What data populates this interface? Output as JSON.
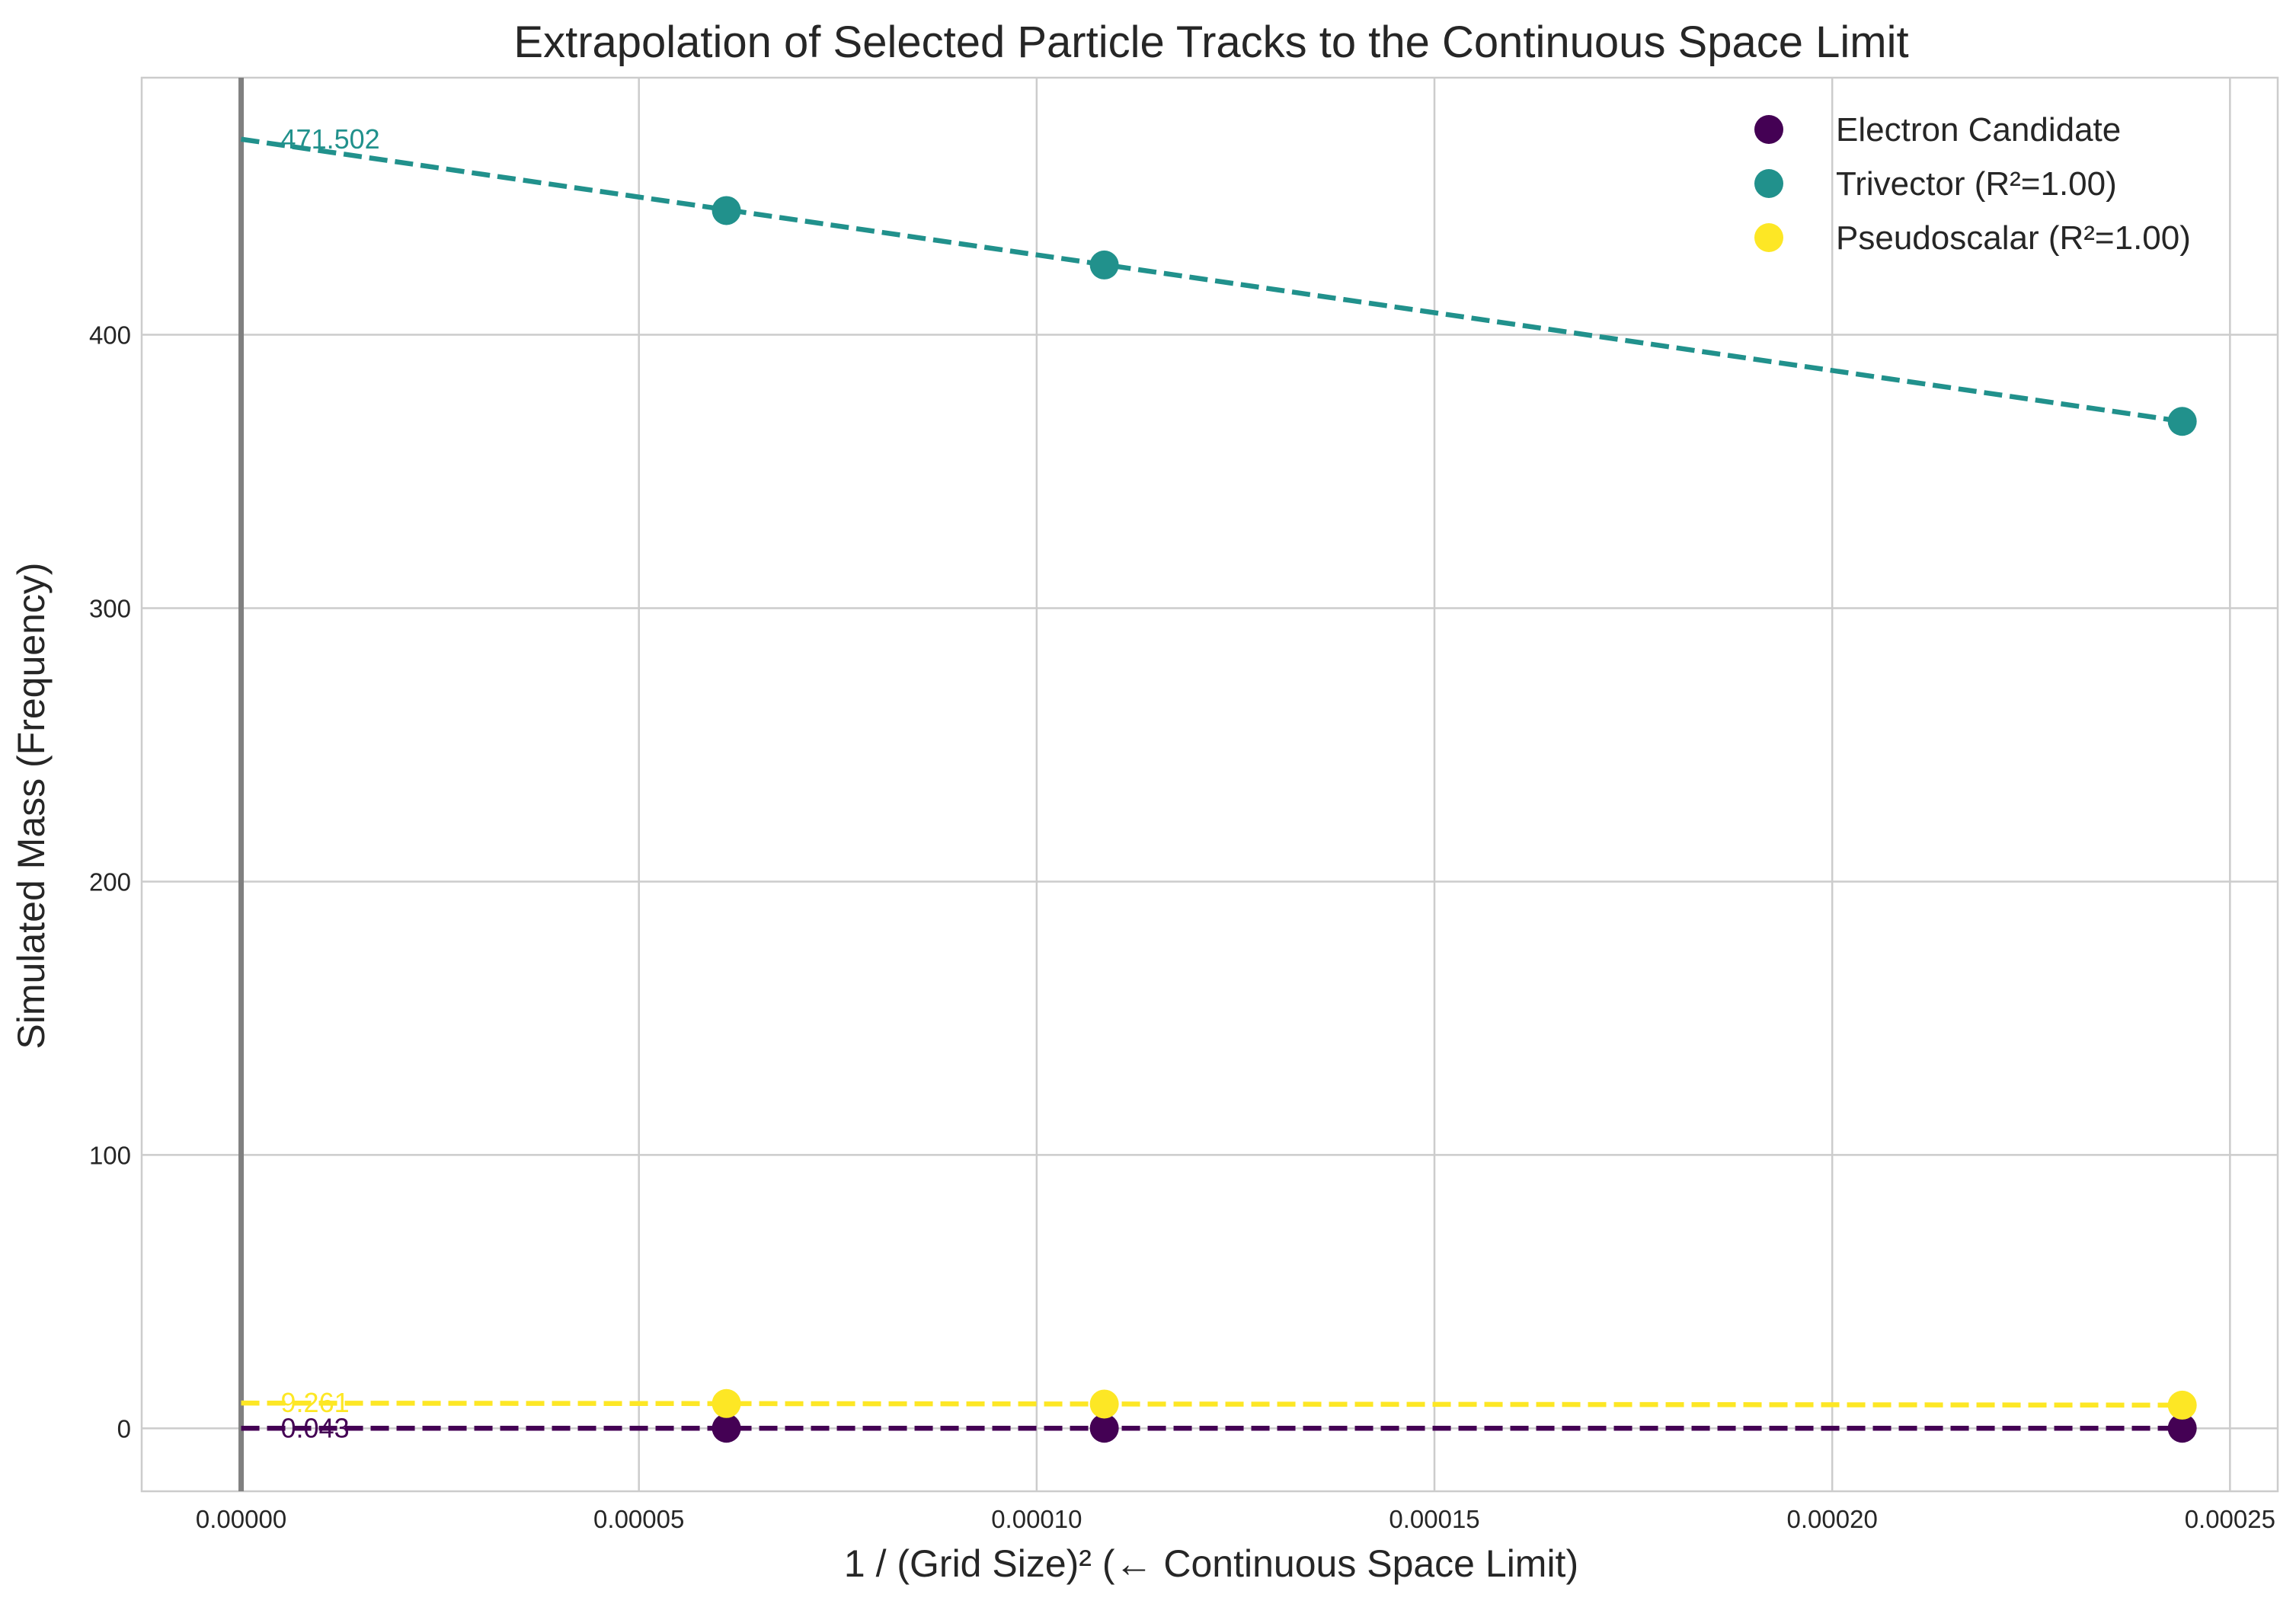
{
  "chart_data": {
    "type": "scatter",
    "title": "Extrapolation of Selected Particle Tracks to the Continuous Space Limit",
    "xlabel": "1 / (Grid Size)² (← Continuous Space Limit)",
    "ylabel": "Simulated Mass (Frequency)",
    "xlim": [
      -1.25e-05,
      0.000256
    ],
    "ylim": [
      -23,
      494
    ],
    "xticks": [
      0,
      5e-05,
      0.0001,
      0.00015,
      0.0002,
      0.00025
    ],
    "xtick_labels": [
      "0.00000",
      "0.00005",
      "0.00010",
      "0.00015",
      "0.00020",
      "0.00025"
    ],
    "yticks": [
      0,
      100,
      200,
      300,
      400
    ],
    "ytick_labels": [
      "0",
      "100",
      "200",
      "300",
      "400"
    ],
    "grid": true,
    "legend_position": "top-right",
    "vertical_reference_line": {
      "x": 0,
      "color": "#808080"
    },
    "series": [
      {
        "name": "Electron Candidate",
        "color": "#440154",
        "x": [
          6.1e-05,
          0.0001085,
          0.000244
        ],
        "y": [
          0.06,
          0.05,
          0.06
        ],
        "fit": {
          "x": [
            0,
            0.000244
          ],
          "y": [
            0.043,
            0.06
          ]
        },
        "intercept_label": "0.043"
      },
      {
        "name": "Trivector (R²=1.00)",
        "color": "#21918c",
        "x": [
          6.1e-05,
          0.0001085,
          0.000244
        ],
        "y": [
          445.4,
          425.5,
          368.3
        ],
        "fit": {
          "x": [
            0,
            0.000244
          ],
          "y": [
            471.502,
            368.3
          ]
        },
        "intercept_label": "471.502"
      },
      {
        "name": "Pseudoscalar (R²=1.00)",
        "color": "#fde725",
        "x": [
          6.1e-05,
          0.0001085,
          0.000244
        ],
        "y": [
          9.1,
          8.9,
          8.5
        ],
        "fit": {
          "x": [
            0,
            0.000244
          ],
          "y": [
            9.261,
            8.5
          ]
        },
        "intercept_label": "9.261"
      }
    ]
  }
}
